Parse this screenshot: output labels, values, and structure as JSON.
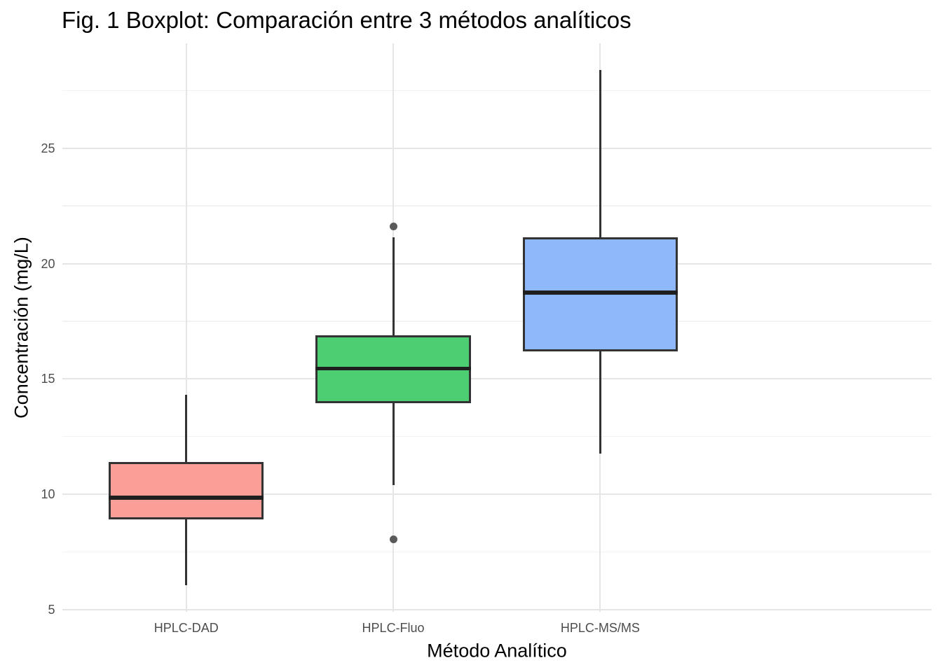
{
  "chart_data": {
    "type": "boxplot",
    "title": "Fig. 1 Boxplot: Comparación entre 3 métodos analíticos",
    "xlabel": "Método Analítico",
    "ylabel": "Concentración (mg/L)",
    "categories": [
      "HPLC-DAD",
      "HPLC-Fluo",
      "HPLC-MS/MS"
    ],
    "series": [
      {
        "name": "HPLC-DAD",
        "min": 6.05,
        "q1": 8.9,
        "median": 9.85,
        "q3": 11.4,
        "max": 14.3,
        "outliers": [],
        "fill": "#FA9E97"
      },
      {
        "name": "HPLC-Fluo",
        "min": 10.4,
        "q1": 13.95,
        "median": 15.45,
        "q3": 16.9,
        "max": 21.15,
        "outliers": [
          8.05,
          21.6
        ],
        "fill": "#4DCE73"
      },
      {
        "name": "HPLC-MS/MS",
        "min": 11.75,
        "q1": 16.2,
        "median": 18.75,
        "q3": 21.15,
        "max": 28.4,
        "outliers": [],
        "fill": "#8EB8FA"
      }
    ],
    "ylim": [
      4.9,
      29.55
    ],
    "y_major_ticks": [
      5,
      10,
      15,
      20,
      25
    ],
    "y_minor_ticks": [
      7.5,
      12.5,
      17.5,
      22.5,
      27.5
    ],
    "grid": "major+minor horizontal, major vertical at category centers",
    "legend": "none"
  },
  "colors": {
    "background": "#FFFFFF",
    "box_border": "#333333",
    "whisker": "#333333",
    "median_line": "#1F1F1F",
    "outlier_dot": "#5A5A5A",
    "grid_major": "#E5E5E5",
    "grid_minor": "#F2F2F2",
    "tick_text": "#4D4D4D",
    "title_text": "#000000",
    "fill_hplc_dad": "#FA9E97",
    "fill_hplc_fluo": "#4DCE73",
    "fill_hplc_msms": "#8EB8FA"
  }
}
